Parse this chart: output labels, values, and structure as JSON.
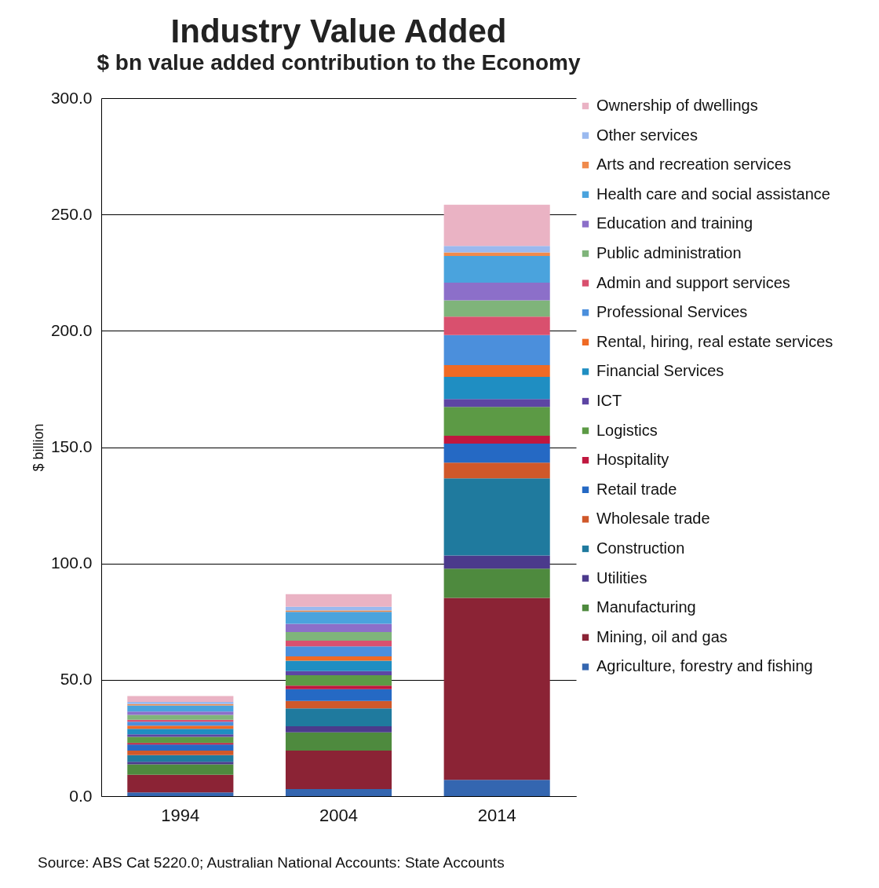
{
  "chart_data": {
    "type": "bar",
    "title": "Industry Value Added",
    "subtitle": "$ bn value added contribution to the Economy",
    "ylabel": "$ billion",
    "categories": [
      "1994",
      "2004",
      "2014"
    ],
    "stacked": true,
    "legend": "right",
    "grid": "y",
    "ylim": [
      0,
      300
    ],
    "yticks": [
      {
        "value": 0,
        "label": "0.0"
      },
      {
        "value": 50,
        "label": "50.0"
      },
      {
        "value": 100,
        "label": "100.0"
      },
      {
        "value": 150,
        "label": "150.0"
      },
      {
        "value": 200,
        "label": "200.0"
      },
      {
        "value": 250,
        "label": "250.0"
      },
      {
        "value": 300,
        "label": "300.0"
      }
    ],
    "series": [
      {
        "name": "Agriculture, forestry and fishing",
        "color": "#3466b0",
        "values": [
          1.6,
          3.0,
          7.0
        ]
      },
      {
        "name": "Mining, oil and gas",
        "color": "#8b2335",
        "values": [
          7.6,
          16.6,
          78.2
        ]
      },
      {
        "name": "Manufacturing",
        "color": "#4e8a3e",
        "values": [
          4.5,
          7.8,
          12.6
        ]
      },
      {
        "name": "Utilities",
        "color": "#4b3a8c",
        "values": [
          1.1,
          2.6,
          5.6
        ]
      },
      {
        "name": "Construction",
        "color": "#1f7a9e",
        "values": [
          2.8,
          7.7,
          33.2
        ]
      },
      {
        "name": "Wholesale trade",
        "color": "#d0582a",
        "values": [
          2.0,
          3.2,
          6.7
        ]
      },
      {
        "name": "Retail trade",
        "color": "#2569c4",
        "values": [
          2.6,
          5.1,
          8.2
        ]
      },
      {
        "name": "Hospitality",
        "color": "#c0173f",
        "values": [
          0.7,
          1.5,
          3.4
        ]
      },
      {
        "name": "Logistics",
        "color": "#5c9a45",
        "values": [
          2.6,
          4.5,
          12.4
        ]
      },
      {
        "name": "ICT",
        "color": "#5d45a3",
        "values": [
          1.1,
          1.7,
          3.4
        ]
      },
      {
        "name": "Financial Services",
        "color": "#1f8ec2",
        "values": [
          2.3,
          4.5,
          9.5
        ]
      },
      {
        "name": "Rental, hiring, real estate services",
        "color": "#ef6a24",
        "values": [
          1.4,
          1.9,
          5.1
        ]
      },
      {
        "name": "Professional Services",
        "color": "#4b8fdc",
        "values": [
          1.7,
          4.3,
          12.9
        ]
      },
      {
        "name": "Admin and support services",
        "color": "#d9506e",
        "values": [
          0.8,
          2.4,
          7.9
        ]
      },
      {
        "name": "Public administration",
        "color": "#7fb47a",
        "values": [
          2.1,
          3.7,
          7.0
        ]
      },
      {
        "name": "Education and training",
        "color": "#8c6fc9",
        "values": [
          1.5,
          3.6,
          7.6
        ]
      },
      {
        "name": "Health care and social assistance",
        "color": "#4aa3dd",
        "values": [
          2.6,
          5.1,
          11.5
        ]
      },
      {
        "name": "Arts and recreation services",
        "color": "#f08a4b",
        "values": [
          0.6,
          0.6,
          1.5
        ]
      },
      {
        "name": "Other services",
        "color": "#9ab9ef",
        "values": [
          0.9,
          1.6,
          2.8
        ]
      },
      {
        "name": "Ownership of dwellings",
        "color": "#eab3c4",
        "values": [
          2.5,
          5.4,
          17.7
        ]
      }
    ],
    "annotations": [
      "Source: ABS Cat 5220.0; Australian National  Accounts: State Accounts"
    ]
  }
}
